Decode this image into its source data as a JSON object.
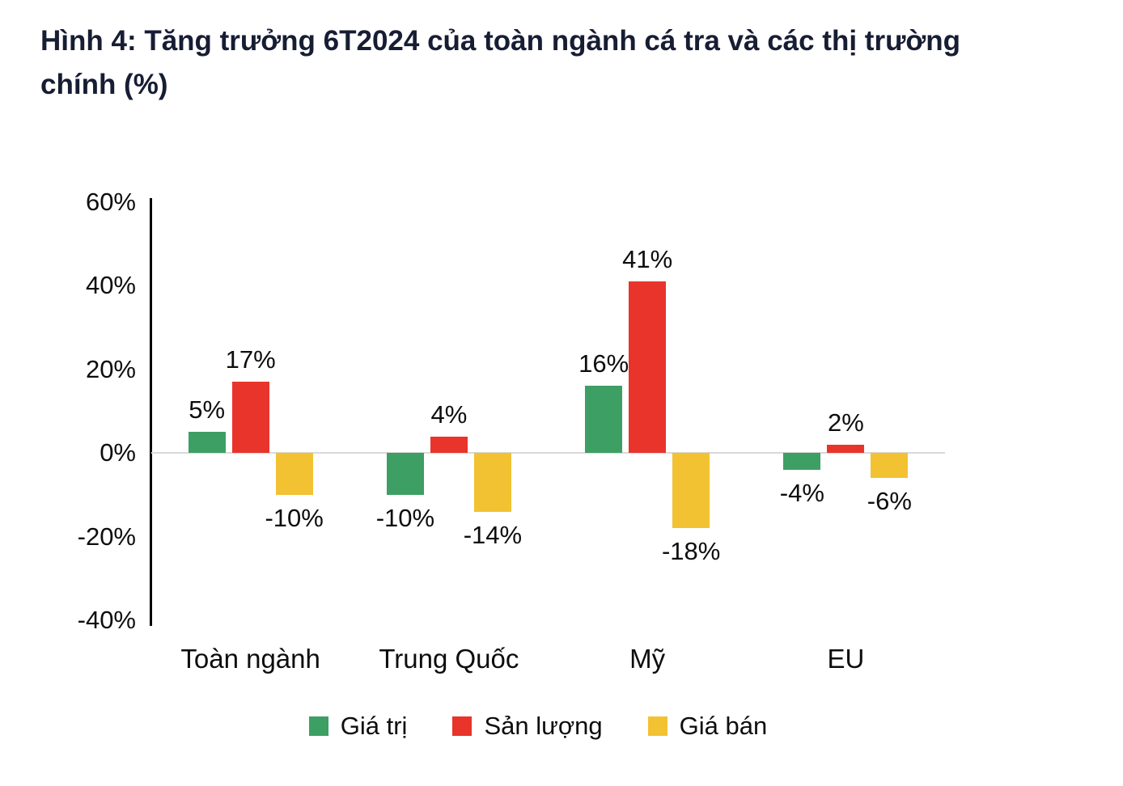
{
  "title": "Hình 4: Tăng trưởng 6T2024 của toàn ngành cá tra và các thị trường chính (%)",
  "chart_data": {
    "type": "bar",
    "title": "Hình 4: Tăng trưởng 6T2024 của toàn ngành cá tra và các thị trường chính (%)",
    "categories": [
      "Toàn ngành",
      "Trung Quốc",
      "Mỹ",
      "EU"
    ],
    "series": [
      {
        "name": "Giá trị",
        "color": "#3d9f63",
        "values": [
          5,
          -10,
          16,
          -4
        ]
      },
      {
        "name": "Sản lượng",
        "color": "#e8342a",
        "values": [
          17,
          4,
          41,
          2
        ]
      },
      {
        "name": "Giá bán",
        "color": "#f2c233",
        "values": [
          -10,
          -14,
          -18,
          -6
        ]
      }
    ],
    "y_ticks": [
      "60%",
      "40%",
      "20%",
      "0%",
      "-20%",
      "-40%"
    ],
    "ylim": [
      -40,
      60
    ],
    "value_suffix": "%",
    "xlabel": "",
    "ylabel": "",
    "grid": "zero-line-only",
    "legend_position": "bottom"
  },
  "colors": {
    "title_text": "#171d33",
    "axis_text": "#0d0d0d",
    "axis_line": "#000000",
    "zero_gridline": "#d9d9d9",
    "background": "#ffffff"
  }
}
